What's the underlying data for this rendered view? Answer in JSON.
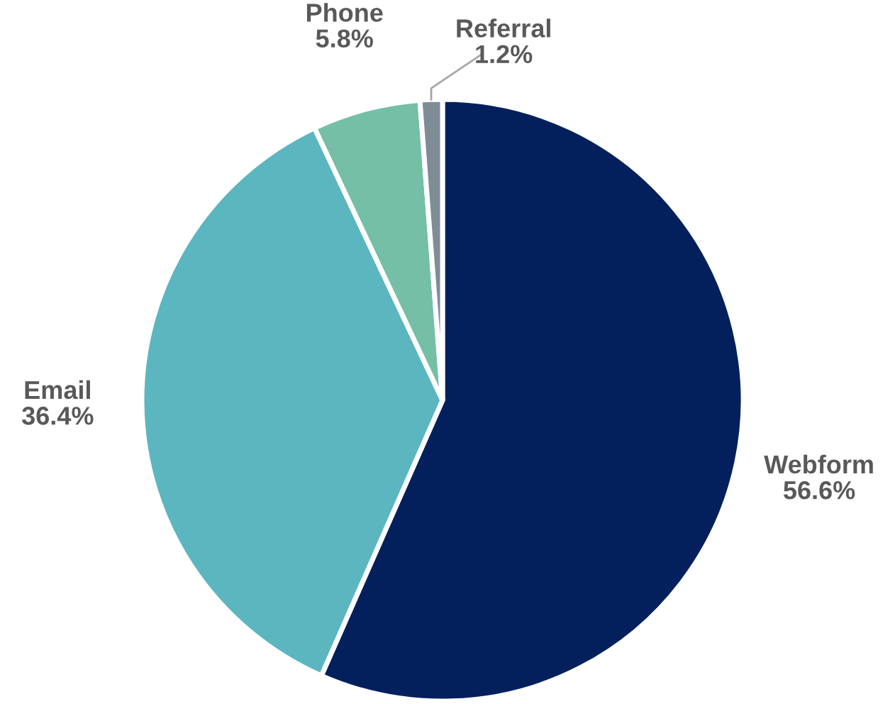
{
  "chart_data": {
    "type": "pie",
    "categories": [
      "Webform",
      "Email",
      "Phone",
      "Referral"
    ],
    "values": [
      56.6,
      36.4,
      5.8,
      1.2
    ],
    "colors": [
      "#03205c",
      "#5bb6c0",
      "#74bfa6",
      "#7f8c96"
    ],
    "value_labels": [
      "56.6%",
      "36.4%",
      "5.8%",
      "1.2%"
    ]
  }
}
